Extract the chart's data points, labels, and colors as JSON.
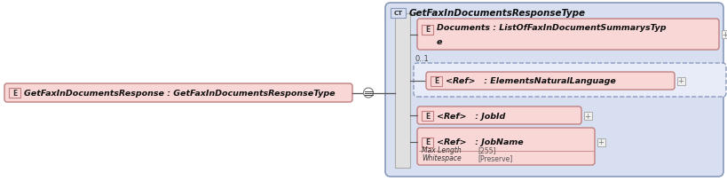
{
  "bg_color": "#ffffff",
  "ct_fill": "#d8dff0",
  "ct_stroke": "#8899bb",
  "elem_fill": "#f9d7d7",
  "elem_stroke": "#c08080",
  "dashed_fill": "#e8ecf8",
  "dashed_stroke": "#8899bb",
  "vbar_fill": "#e0e0e0",
  "vbar_stroke": "#aaaaaa",
  "plus_fill": "#f0f0f0",
  "plus_stroke": "#aaaaaa",
  "line_color": "#555555",
  "ct_label": "GetFaxInDocumentsResponseType",
  "main_label": "GetFaxInDocumentsResponse : GetFaxInDocumentsResponseType",
  "e1_line1": "Documents : ListOfFaxInDocumentSummarysTyp",
  "e1_line2": "e",
  "e2_label": "<Ref>   : ElementsNaturalLanguage",
  "e3_label": "<Ref>   : JobId",
  "e4_label": "<Ref>   : JobName",
  "e4_bot_label1": "Max Length",
  "e4_bot_val1": "[255]",
  "e4_bot_label2": "Whitespace",
  "e4_bot_val2": "[Preserve]",
  "zero_one": "0..1"
}
